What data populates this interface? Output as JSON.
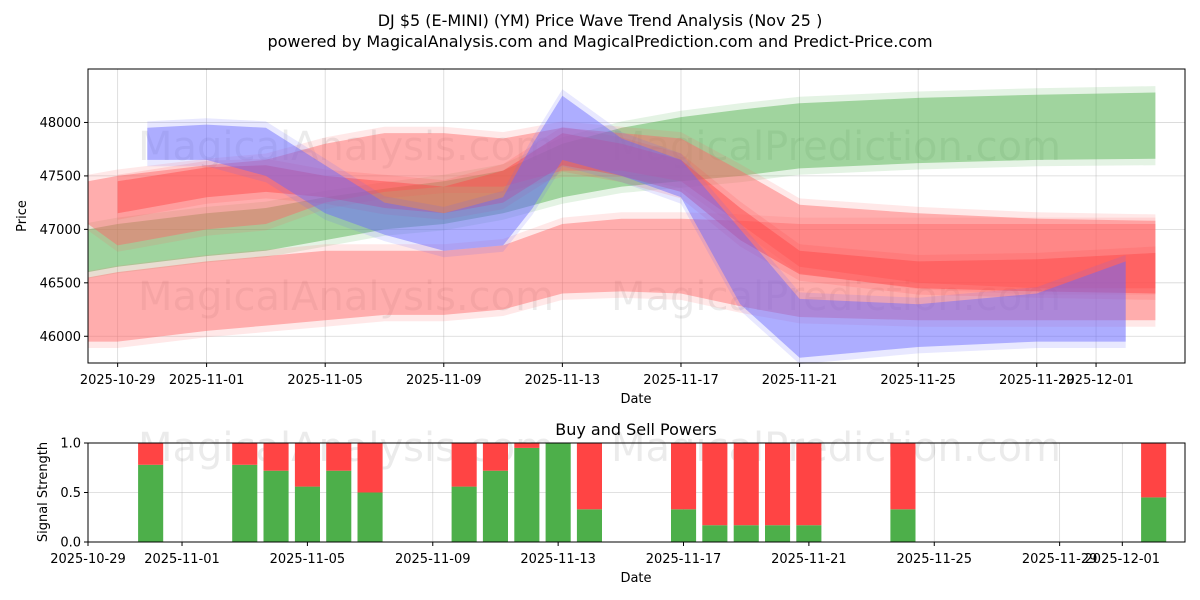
{
  "chart_data": [
    {
      "type": "area",
      "title_line1": "DJ $5 (E-MINI) (YM) Price Wave Trend Analysis (Nov 25 )",
      "title_line2": "powered by MagicalAnalysis.com and MagicalPrediction.com and Predict-Price.com",
      "xlabel": "Date",
      "ylabel": "Price",
      "ylim": [
        45750,
        48500
      ],
      "xlim": [
        "2025-10-28",
        "2025-12-04"
      ],
      "yticks": [
        46000,
        46500,
        47000,
        47500,
        48000
      ],
      "xticks": [
        "2025-10-29",
        "2025-11-01",
        "2025-11-05",
        "2025-11-09",
        "2025-11-13",
        "2025-11-17",
        "2025-11-21",
        "2025-11-25",
        "2025-11-29",
        "2025-12-01"
      ],
      "grid": true,
      "watermarks": [
        "MagicalAnalysis.com",
        "MagicalPrediction.com"
      ],
      "series": [
        {
          "name": "green-band",
          "color": "#4daf4a",
          "x": [
            "2025-10-28",
            "2025-10-29",
            "2025-11-01",
            "2025-11-03",
            "2025-11-05",
            "2025-11-07",
            "2025-11-09",
            "2025-11-11",
            "2025-11-13",
            "2025-11-15",
            "2025-11-17",
            "2025-11-19",
            "2025-11-21",
            "2025-11-25",
            "2025-11-29",
            "2025-12-03"
          ],
          "upper": [
            47000,
            47050,
            47150,
            47200,
            47300,
            47380,
            47450,
            47550,
            47800,
            47950,
            48050,
            48120,
            48180,
            48230,
            48260,
            48280
          ],
          "lower": [
            46600,
            46650,
            46750,
            46800,
            46900,
            47000,
            47050,
            47150,
            47300,
            47400,
            47450,
            47500,
            47570,
            47620,
            47650,
            47660
          ]
        },
        {
          "name": "red-band-low",
          "color": "#ff6666",
          "x": [
            "2025-10-28",
            "2025-10-29",
            "2025-11-01",
            "2025-11-03",
            "2025-11-05",
            "2025-11-07",
            "2025-11-09",
            "2025-11-11",
            "2025-11-13",
            "2025-11-15",
            "2025-11-17",
            "2025-11-19",
            "2025-11-21",
            "2025-11-25",
            "2025-11-29",
            "2025-12-03"
          ],
          "upper": [
            46550,
            46600,
            46700,
            46750,
            46800,
            46800,
            46800,
            46850,
            47050,
            47100,
            47100,
            47080,
            47050,
            47050,
            47050,
            47050
          ],
          "lower": [
            45950,
            45950,
            46050,
            46100,
            46150,
            46200,
            46200,
            46250,
            46400,
            46420,
            46400,
            46280,
            46180,
            46150,
            46150,
            46150
          ]
        },
        {
          "name": "red-band-high",
          "color": "#ff6666",
          "x": [
            "2025-10-28",
            "2025-10-29",
            "2025-11-01",
            "2025-11-03",
            "2025-11-05",
            "2025-11-07",
            "2025-11-09",
            "2025-11-11",
            "2025-11-13",
            "2025-11-15",
            "2025-11-17",
            "2025-11-19",
            "2025-11-21",
            "2025-11-25",
            "2025-11-29",
            "2025-12-03"
          ],
          "upper": [
            47450,
            47500,
            47600,
            47650,
            47800,
            47900,
            47900,
            47850,
            47950,
            47900,
            47850,
            47550,
            47230,
            47150,
            47100,
            47080
          ],
          "lower": [
            47050,
            46850,
            47000,
            47050,
            47250,
            47350,
            47400,
            47400,
            47550,
            47550,
            47450,
            47050,
            46650,
            46500,
            46450,
            46450
          ]
        },
        {
          "name": "red-band-mid",
          "color": "#ff4444",
          "x": [
            "2025-10-29",
            "2025-11-01",
            "2025-11-03",
            "2025-11-05",
            "2025-11-07",
            "2025-11-09",
            "2025-11-11",
            "2025-11-13",
            "2025-11-15",
            "2025-11-17",
            "2025-11-19",
            "2025-11-21",
            "2025-11-25",
            "2025-11-29",
            "2025-12-03"
          ],
          "upper": [
            47450,
            47580,
            47600,
            47500,
            47450,
            47400,
            47550,
            47900,
            47800,
            47650,
            47200,
            46800,
            46700,
            46720,
            46780
          ],
          "lower": [
            47150,
            47300,
            47350,
            47300,
            47200,
            47150,
            47250,
            47600,
            47500,
            47350,
            46900,
            46580,
            46450,
            46420,
            46400
          ]
        },
        {
          "name": "blue-band",
          "color": "#6666ff",
          "x": [
            "2025-10-30",
            "2025-11-01",
            "2025-11-03",
            "2025-11-05",
            "2025-11-07",
            "2025-11-09",
            "2025-11-11",
            "2025-11-12",
            "2025-11-13",
            "2025-11-15",
            "2025-11-17",
            "2025-11-19",
            "2025-11-21",
            "2025-11-25",
            "2025-11-29",
            "2025-12-02"
          ],
          "upper": [
            47950,
            47980,
            47950,
            47600,
            47250,
            47150,
            47300,
            47800,
            48250,
            47850,
            47650,
            47000,
            46350,
            46300,
            46400,
            46700
          ],
          "lower": [
            47650,
            47650,
            47500,
            47150,
            46950,
            46800,
            46850,
            47200,
            47650,
            47500,
            47300,
            46300,
            45800,
            45900,
            45950,
            45950
          ]
        }
      ]
    },
    {
      "type": "bar",
      "title": "Buy and Sell Powers",
      "xlabel": "Date",
      "ylabel": "Signal Strength",
      "ylim": [
        0,
        1
      ],
      "yticks": [
        "0.0",
        "0.5",
        "1.0"
      ],
      "xlim": [
        "2025-10-29",
        "2025-12-03"
      ],
      "xticks": [
        "2025-10-29",
        "2025-11-01",
        "2025-11-05",
        "2025-11-09",
        "2025-11-13",
        "2025-11-17",
        "2025-11-21",
        "2025-11-25",
        "2025-11-29",
        "2025-12-01"
      ],
      "buy_color": "#4daf4a",
      "sell_color": "#ff4444",
      "categories": [
        "2025-10-31",
        "2025-11-03",
        "2025-11-04",
        "2025-11-05",
        "2025-11-06",
        "2025-11-07",
        "2025-11-10",
        "2025-11-11",
        "2025-11-12",
        "2025-11-13",
        "2025-11-14",
        "2025-11-17",
        "2025-11-18",
        "2025-11-19",
        "2025-11-20",
        "2025-11-21",
        "2025-11-24",
        "2025-12-02"
      ],
      "series": [
        {
          "name": "Buy",
          "values": [
            0.78,
            0.78,
            0.72,
            0.56,
            0.72,
            0.5,
            0.56,
            0.72,
            0.95,
            1.0,
            0.33,
            0.33,
            0.17,
            0.17,
            0.17,
            0.17,
            0.33,
            0.45
          ]
        },
        {
          "name": "Sell",
          "values": [
            0.22,
            0.22,
            0.28,
            0.44,
            0.28,
            0.5,
            0.44,
            0.28,
            0.05,
            0.0,
            0.67,
            0.67,
            0.83,
            0.83,
            0.83,
            0.83,
            0.67,
            0.55
          ]
        }
      ]
    }
  ]
}
